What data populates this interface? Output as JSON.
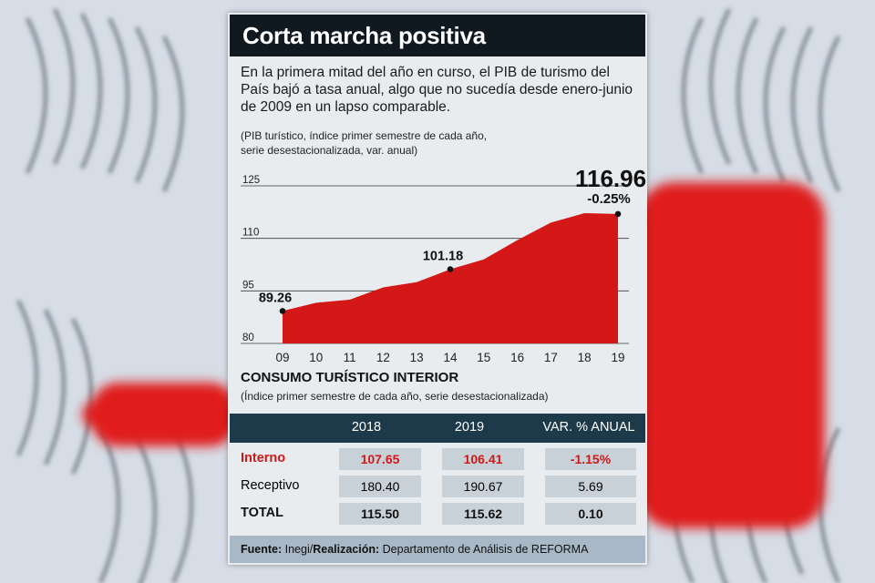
{
  "header": {
    "title": "Corta marcha positiva",
    "lead": "En la primera mitad del año en curso, el PIB de turismo del País bajó a tasa anual, algo que no sucedía desde enero-junio de 2009 en un lapso comparable.",
    "note_line1": "(PIB turístico, índice primer semestre de cada año,",
    "note_line2": "serie desestacionalizada, var. anual)"
  },
  "colors": {
    "accent": "#d41717",
    "header_bg": "#101820",
    "table_header": "#1d3a4a"
  },
  "chart_data": {
    "type": "area",
    "categories": [
      "09",
      "10",
      "11",
      "12",
      "13",
      "14",
      "15",
      "16",
      "17",
      "18",
      "19"
    ],
    "values": [
      89.26,
      91.6,
      92.5,
      96.0,
      97.5,
      101.18,
      104.0,
      109.5,
      114.5,
      117.2,
      116.96
    ],
    "yticks": [
      80,
      95,
      110,
      125
    ],
    "ylim": [
      80,
      125
    ],
    "annotations": [
      {
        "index": 0,
        "label": "89.26"
      },
      {
        "index": 5,
        "label": "101.18"
      },
      {
        "index": 10,
        "label": "116.96",
        "sublabel": "-0.25%"
      }
    ],
    "grid": true
  },
  "table": {
    "title": "CONSUMO TURÍSTICO INTERIOR",
    "note": "(Índice primer semestre de cada año, serie desestacionalizada)",
    "columns": [
      "",
      "2018",
      "2019",
      "VAR. % ANUAL"
    ],
    "rows": [
      {
        "label": "Interno",
        "v2018": "107.65",
        "v2019": "106.41",
        "var": "-1.15%"
      },
      {
        "label": "Receptivo",
        "v2018": "180.40",
        "v2019": "190.67",
        "var": "5.69"
      },
      {
        "label": "TOTAL",
        "v2018": "115.50",
        "v2019": "115.62",
        "var": "0.10"
      }
    ]
  },
  "footer": {
    "source_label": "Fuente:",
    "source": "Inegi/",
    "credit_label": "Realización:",
    "credit": "Departamento de Análisis de REFORMA"
  }
}
